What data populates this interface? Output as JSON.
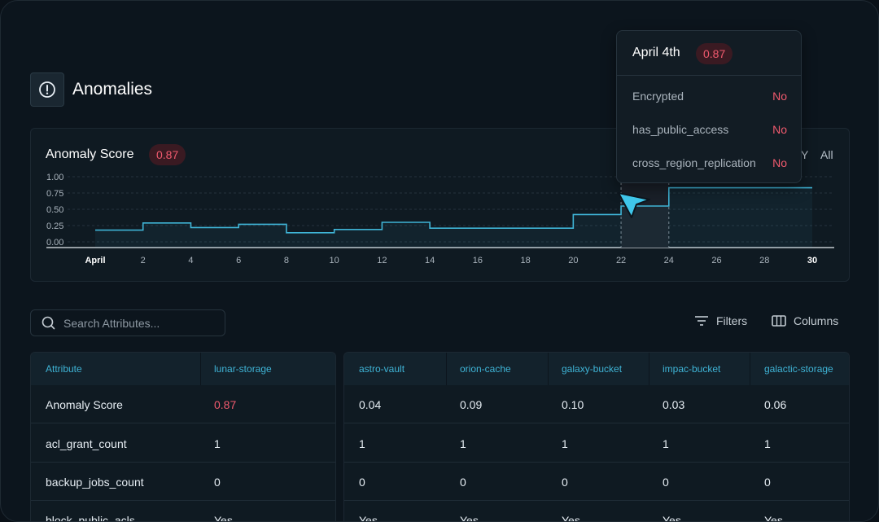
{
  "header": {
    "title": "Anomalies",
    "icon": "alert-circle-icon"
  },
  "chart": {
    "title": "Anomaly Score",
    "score": "0.87",
    "range_buttons": [
      "Y",
      "All"
    ]
  },
  "chart_data": {
    "type": "line",
    "title": "Anomaly Score",
    "x_tick_labels": [
      "April",
      "2",
      "4",
      "6",
      "8",
      "10",
      "12",
      "14",
      "16",
      "18",
      "20",
      "22",
      "24",
      "26",
      "28",
      "30"
    ],
    "y_tick_labels": [
      "1.00",
      "0.75",
      "0.50",
      "0.25",
      "0.00"
    ],
    "ylim": [
      0,
      1
    ],
    "xlim": [
      0,
      30
    ],
    "step": true,
    "series": [
      {
        "x": [
          1,
          3,
          5,
          7,
          9,
          11,
          13,
          15,
          17,
          19,
          21,
          23,
          25,
          27,
          29
        ],
        "values": [
          0.18,
          0.29,
          0.22,
          0.27,
          0.14,
          0.19,
          0.3,
          0.21,
          0.21,
          0.21,
          0.42,
          0.55,
          0.83,
          0.83,
          0.83
        ]
      }
    ],
    "highlight_range": [
      22,
      24
    ],
    "color": "#3fb4d6"
  },
  "tooltip": {
    "date": "April 4th",
    "score": "0.87",
    "rows": [
      {
        "label": "Encrypted",
        "value": "No"
      },
      {
        "label": "has_public_access",
        "value": "No"
      },
      {
        "label": "cross_region_replication",
        "value": "No"
      }
    ]
  },
  "toolbar": {
    "search_placeholder": "Search Attributes...",
    "filters_label": "Filters",
    "columns_label": "Columns"
  },
  "table": {
    "left_headers": [
      "Attribute",
      "lunar-storage"
    ],
    "right_headers": [
      "astro-vault",
      "orion-cache",
      "galaxy-bucket",
      "impac-bucket",
      "galactic-storage"
    ],
    "rows": [
      {
        "attr": "Anomaly Score",
        "lunar": "0.87",
        "others": [
          "0.04",
          "0.09",
          "0.10",
          "0.03",
          "0.06"
        ]
      },
      {
        "attr": "acl_grant_count",
        "lunar": "1",
        "others": [
          "1",
          "1",
          "1",
          "1",
          "1"
        ]
      },
      {
        "attr": "backup_jobs_count",
        "lunar": "0",
        "others": [
          "0",
          "0",
          "0",
          "0",
          "0"
        ]
      },
      {
        "attr": "block_public_acls",
        "lunar": "Yes",
        "others": [
          "Yes",
          "Yes",
          "Yes",
          "Yes",
          "Yes"
        ]
      }
    ]
  }
}
